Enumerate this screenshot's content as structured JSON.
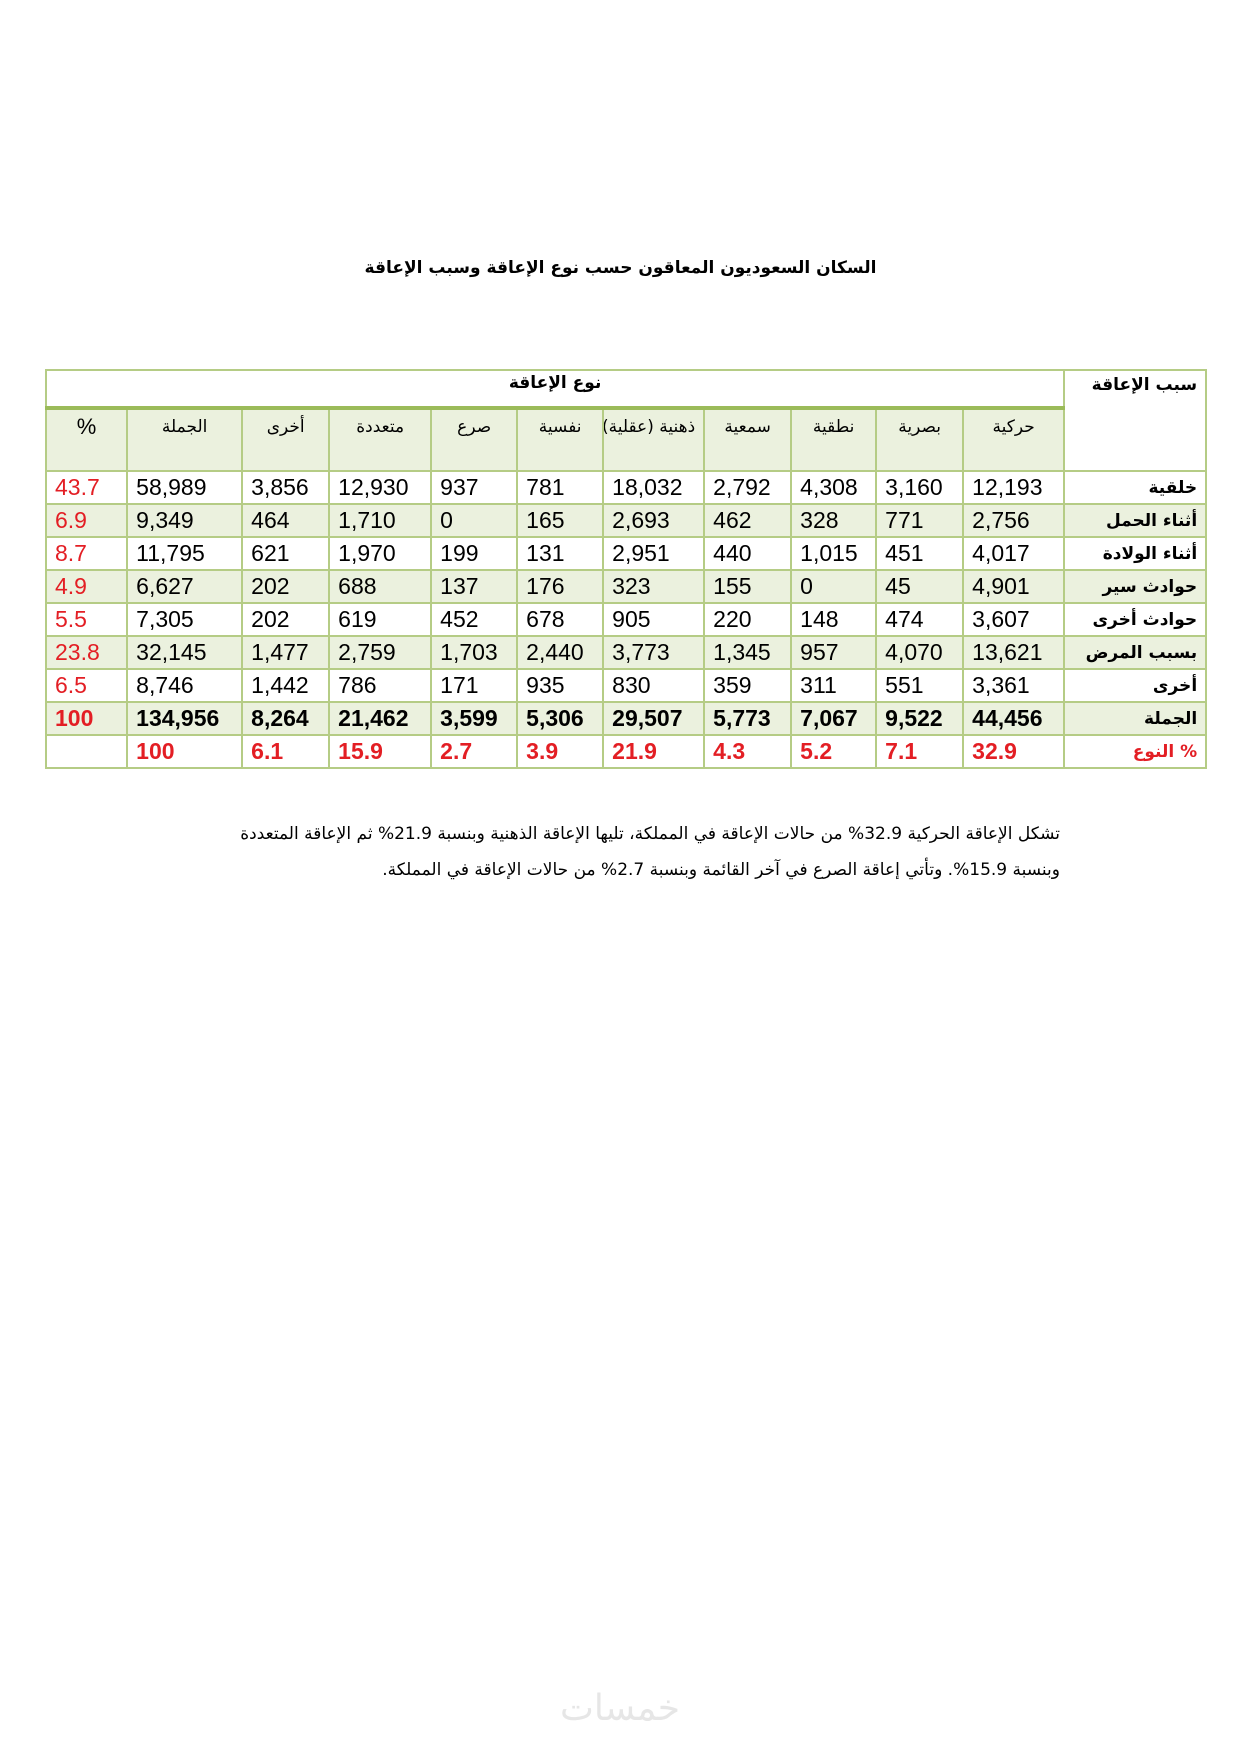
{
  "title": "السكان السعوديون المعاقون حسب نوع الإعاقة وسبب الإعاقة",
  "table": {
    "cause_header": "سبب الإعاقة",
    "type_header": "نوع الإعاقة",
    "columns": [
      "حركية",
      "بصرية",
      "نطقية",
      "سمعية",
      "ذهنية (عقلية)",
      "نفسية",
      "صرع",
      "متعددة",
      "أخرى",
      "الجملة",
      "%"
    ],
    "rows": [
      {
        "label": "خلقية",
        "values": [
          "12,193",
          "3,160",
          "4,308",
          "2,792",
          "18,032",
          "781",
          "937",
          "12,930",
          "3,856",
          "58,989"
        ],
        "pct": "43.7"
      },
      {
        "label": "أثناء الحمل",
        "values": [
          "2,756",
          "771",
          "328",
          "462",
          "2,693",
          "165",
          "0",
          "1,710",
          "464",
          "9,349"
        ],
        "pct": "6.9"
      },
      {
        "label": "أثناء الولادة",
        "values": [
          "4,017",
          "451",
          "1,015",
          "440",
          "2,951",
          "131",
          "199",
          "1,970",
          "621",
          "11,795"
        ],
        "pct": "8.7"
      },
      {
        "label": "حوادث سير",
        "values": [
          "4,901",
          "45",
          "0",
          "155",
          "323",
          "176",
          "137",
          "688",
          "202",
          "6,627"
        ],
        "pct": "4.9"
      },
      {
        "label": "حوادث أخرى",
        "values": [
          "3,607",
          "474",
          "148",
          "220",
          "905",
          "678",
          "452",
          "619",
          "202",
          "7,305"
        ],
        "pct": "5.5"
      },
      {
        "label": "بسبب المرض",
        "values": [
          "13,621",
          "4,070",
          "957",
          "1,345",
          "3,773",
          "2,440",
          "1,703",
          "2,759",
          "1,477",
          "32,145"
        ],
        "pct": "23.8"
      },
      {
        "label": "أخرى",
        "values": [
          "3,361",
          "551",
          "311",
          "359",
          "830",
          "935",
          "171",
          "786",
          "1,442",
          "8,746"
        ],
        "pct": "6.5"
      }
    ],
    "total": {
      "label": "الجملة",
      "values": [
        "44,456",
        "9,522",
        "7,067",
        "5,773",
        "29,507",
        "5,306",
        "3,599",
        "21,462",
        "8,264",
        "134,956"
      ],
      "pct": "100"
    },
    "type_pct": {
      "label": "% النوع",
      "values": [
        "32.9",
        "7.1",
        "5.2",
        "4.3",
        "21.9",
        "3.9",
        "2.7",
        "15.9",
        "6.1",
        "100"
      ],
      "pct": ""
    }
  },
  "paragraph": "تشكل الإعاقة الحركية 32.9% من حالات الإعاقة في المملكة، تليها الإعاقة الذهنية وبنسبة 21.9% ثم الإعاقة المتعددة وبنسبة 15.9%. وتأتي إعاقة الصرع في آخر القائمة وبنسبة 2.7% من حالات الإعاقة في المملكة.",
  "watermark": "خمسات",
  "colors": {
    "border": "#9bbb59",
    "band": "#ebf1de",
    "red": "#e31e24"
  }
}
